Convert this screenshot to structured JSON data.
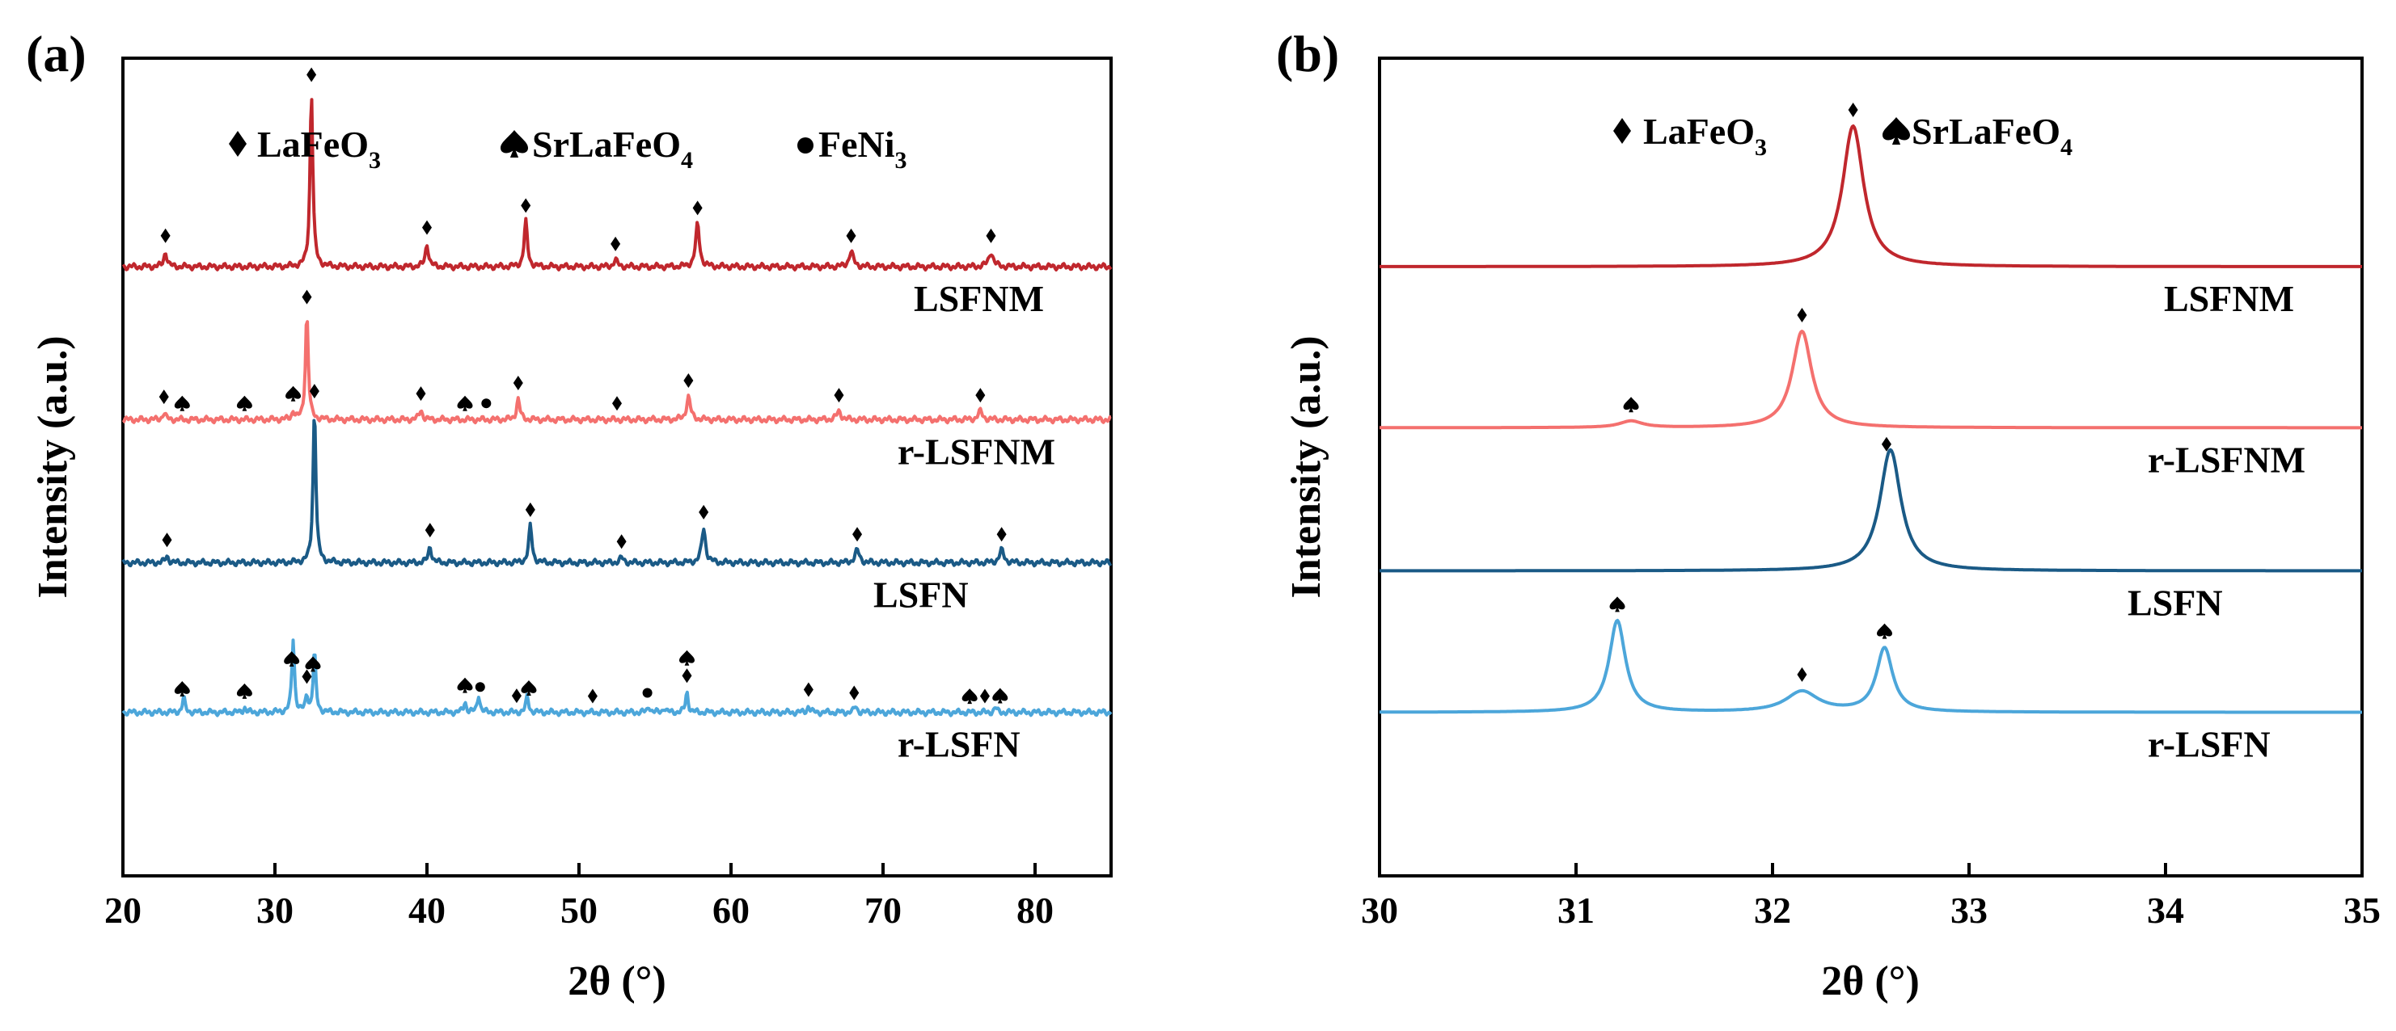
{
  "figure": {
    "panels": [
      {
        "label": "(a)",
        "ylabel": "Intensity (a.u.)",
        "xlabel": "2θ (°)",
        "legend": [
          {
            "marker": "diamond",
            "text": "LaFeO",
            "sub": "3"
          },
          {
            "marker": "spade",
            "text": "SrLaFeO",
            "sub": "4"
          },
          {
            "marker": "circle",
            "text": "FeNi",
            "sub": "3"
          }
        ]
      },
      {
        "label": "(b)",
        "ylabel": "Intensity (a.u.)",
        "xlabel": "2θ (°)",
        "legend": [
          {
            "marker": "diamond",
            "text": "LaFeO",
            "sub": "3"
          },
          {
            "marker": "spade",
            "text": "SrLaFeO",
            "sub": "4"
          }
        ]
      }
    ]
  },
  "chart_data": [
    {
      "type": "line",
      "title": "(a)",
      "xlabel": "2θ (°)",
      "ylabel": "Intensity (a.u.)",
      "xlim": [
        20,
        85
      ],
      "ylim": [
        0,
        1
      ],
      "xticks": [
        20,
        30,
        40,
        50,
        60,
        70,
        80
      ],
      "xtick_labels": [
        "20",
        "30",
        "40",
        "50",
        "60",
        "70",
        "80"
      ],
      "series": [
        {
          "name": "LSFNM",
          "color": "#c0272d",
          "baseline": 0.745,
          "noise": 0.004,
          "peaks": [
            {
              "x": 22.8,
              "h": 0.018,
              "w": 0.25
            },
            {
              "x": 32.4,
              "h": 0.215,
              "w": 0.22
            },
            {
              "x": 40.0,
              "h": 0.028,
              "w": 0.25
            },
            {
              "x": 46.5,
              "h": 0.055,
              "w": 0.25
            },
            {
              "x": 52.4,
              "h": 0.008,
              "w": 0.3
            },
            {
              "x": 57.8,
              "h": 0.052,
              "w": 0.3
            },
            {
              "x": 67.9,
              "h": 0.018,
              "w": 0.35
            },
            {
              "x": 77.1,
              "h": 0.018,
              "w": 0.35
            }
          ],
          "markers": [
            {
              "x": 22.8,
              "type": "diamond"
            },
            {
              "x": 32.4,
              "type": "diamond"
            },
            {
              "x": 40.0,
              "type": "diamond"
            },
            {
              "x": 46.5,
              "type": "diamond"
            },
            {
              "x": 52.4,
              "type": "diamond"
            },
            {
              "x": 57.8,
              "type": "diamond"
            },
            {
              "x": 67.9,
              "type": "diamond"
            },
            {
              "x": 77.1,
              "type": "diamond"
            }
          ]
        },
        {
          "name": "r-LSFNM",
          "color": "#f4706e",
          "baseline": 0.558,
          "noise": 0.004,
          "peaks": [
            {
              "x": 22.7,
              "h": 0.008,
              "w": 0.25
            },
            {
              "x": 31.2,
              "h": 0.01,
              "w": 0.2
            },
            {
              "x": 32.1,
              "h": 0.13,
              "w": 0.22
            },
            {
              "x": 39.6,
              "h": 0.012,
              "w": 0.25
            },
            {
              "x": 46.0,
              "h": 0.025,
              "w": 0.25
            },
            {
              "x": 57.2,
              "h": 0.028,
              "w": 0.3
            },
            {
              "x": 67.1,
              "h": 0.01,
              "w": 0.35
            },
            {
              "x": 76.4,
              "h": 0.01,
              "w": 0.35
            }
          ],
          "markers": [
            {
              "x": 22.7,
              "type": "diamond"
            },
            {
              "x": 23.9,
              "type": "spade"
            },
            {
              "x": 28.0,
              "type": "spade"
            },
            {
              "x": 31.2,
              "type": "spade"
            },
            {
              "x": 32.1,
              "type": "diamond"
            },
            {
              "x": 39.6,
              "type": "diamond"
            },
            {
              "x": 42.5,
              "type": "spade"
            },
            {
              "x": 43.9,
              "type": "circle"
            },
            {
              "x": 46.0,
              "type": "diamond"
            },
            {
              "x": 52.5,
              "type": "diamond"
            },
            {
              "x": 57.2,
              "type": "diamond"
            },
            {
              "x": 67.1,
              "type": "diamond"
            },
            {
              "x": 76.4,
              "type": "diamond"
            }
          ]
        },
        {
          "name": "LSFN",
          "color": "#1a5a86",
          "baseline": 0.383,
          "noise": 0.004,
          "peaks": [
            {
              "x": 22.9,
              "h": 0.008,
              "w": 0.25
            },
            {
              "x": 32.6,
              "h": 0.19,
              "w": 0.22
            },
            {
              "x": 40.2,
              "h": 0.02,
              "w": 0.25
            },
            {
              "x": 46.8,
              "h": 0.045,
              "w": 0.25
            },
            {
              "x": 52.8,
              "h": 0.006,
              "w": 0.3
            },
            {
              "x": 58.2,
              "h": 0.042,
              "w": 0.3
            },
            {
              "x": 68.3,
              "h": 0.015,
              "w": 0.35
            },
            {
              "x": 77.8,
              "h": 0.015,
              "w": 0.35
            }
          ],
          "markers": [
            {
              "x": 22.9,
              "type": "diamond"
            },
            {
              "x": 32.6,
              "type": "diamond"
            },
            {
              "x": 40.2,
              "type": "diamond"
            },
            {
              "x": 46.8,
              "type": "diamond"
            },
            {
              "x": 52.8,
              "type": "diamond"
            },
            {
              "x": 58.2,
              "type": "diamond"
            },
            {
              "x": 68.3,
              "type": "diamond"
            },
            {
              "x": 77.8,
              "type": "diamond"
            }
          ]
        },
        {
          "name": "r-LSFN",
          "color": "#4ca6da",
          "baseline": 0.2,
          "noise": 0.004,
          "peaks": [
            {
              "x": 24.0,
              "h": 0.018,
              "w": 0.2
            },
            {
              "x": 28.0,
              "h": 0.006,
              "w": 0.2
            },
            {
              "x": 31.2,
              "h": 0.09,
              "w": 0.2
            },
            {
              "x": 32.1,
              "h": 0.02,
              "w": 0.2
            },
            {
              "x": 32.6,
              "h": 0.075,
              "w": 0.2
            },
            {
              "x": 42.5,
              "h": 0.013,
              "w": 0.2
            },
            {
              "x": 43.4,
              "h": 0.022,
              "w": 0.2
            },
            {
              "x": 46.6,
              "h": 0.02,
              "w": 0.2
            },
            {
              "x": 54.6,
              "h": 0.008,
              "w": 0.2
            },
            {
              "x": 55.6,
              "h": 0.006,
              "w": 0.2
            },
            {
              "x": 57.1,
              "h": 0.025,
              "w": 0.2
            },
            {
              "x": 65.1,
              "h": 0.008,
              "w": 0.2
            },
            {
              "x": 68.2,
              "h": 0.008,
              "w": 0.2
            },
            {
              "x": 77.4,
              "h": 0.006,
              "w": 0.2
            }
          ],
          "markers": [
            {
              "x": 23.9,
              "type": "spade"
            },
            {
              "x": 28.0,
              "type": "spade"
            },
            {
              "x": 31.1,
              "type": "spade"
            },
            {
              "x": 32.1,
              "type": "diamond"
            },
            {
              "x": 32.5,
              "type": "spade"
            },
            {
              "x": 42.5,
              "type": "spade"
            },
            {
              "x": 43.5,
              "type": "circle"
            },
            {
              "x": 45.9,
              "type": "diamond"
            },
            {
              "x": 46.7,
              "type": "spade"
            },
            {
              "x": 50.9,
              "type": "diamond"
            },
            {
              "x": 54.5,
              "type": "circle"
            },
            {
              "x": 57.1,
              "type": "diamond"
            },
            {
              "x": 57.1,
              "type": "spade"
            },
            {
              "x": 65.1,
              "type": "diamond"
            },
            {
              "x": 68.1,
              "type": "diamond"
            },
            {
              "x": 75.7,
              "type": "spade"
            },
            {
              "x": 76.7,
              "type": "diamond"
            },
            {
              "x": 77.7,
              "type": "spade"
            }
          ]
        }
      ]
    },
    {
      "type": "line",
      "title": "(b)",
      "xlabel": "2θ (°)",
      "ylabel": "Intensity (a.u.)",
      "xlim": [
        30,
        35
      ],
      "ylim": [
        0,
        1
      ],
      "xticks": [
        30,
        31,
        32,
        33,
        34,
        35
      ],
      "xtick_labels": [
        "30",
        "31",
        "32",
        "33",
        "34",
        "35"
      ],
      "series": [
        {
          "name": "LSFNM",
          "color": "#c0272d",
          "baseline": 0.745,
          "noise": 0.0,
          "peaks": [
            {
              "x": 32.41,
              "h": 0.172,
              "w": 0.13
            }
          ],
          "markers": [
            {
              "x": 32.41,
              "type": "diamond"
            }
          ]
        },
        {
          "name": "r-LSFNM",
          "color": "#f4706e",
          "baseline": 0.548,
          "noise": 0.0,
          "peaks": [
            {
              "x": 31.28,
              "h": 0.008,
              "w": 0.14
            },
            {
              "x": 32.15,
              "h": 0.118,
              "w": 0.12
            }
          ],
          "markers": [
            {
              "x": 31.28,
              "type": "spade"
            },
            {
              "x": 32.15,
              "type": "diamond"
            }
          ]
        },
        {
          "name": "LSFN",
          "color": "#1a5a86",
          "baseline": 0.373,
          "noise": 0.0,
          "peaks": [
            {
              "x": 32.6,
              "h": 0.148,
              "w": 0.13
            }
          ],
          "markers": [
            {
              "x": 32.58,
              "type": "diamond"
            }
          ]
        },
        {
          "name": "r-LSFN",
          "color": "#4ca6da",
          "baseline": 0.2,
          "noise": 0.0,
          "peaks": [
            {
              "x": 31.21,
              "h": 0.112,
              "w": 0.1
            },
            {
              "x": 32.15,
              "h": 0.025,
              "w": 0.2
            },
            {
              "x": 32.57,
              "h": 0.078,
              "w": 0.1
            }
          ],
          "markers": [
            {
              "x": 31.21,
              "type": "spade"
            },
            {
              "x": 32.15,
              "type": "diamond"
            },
            {
              "x": 32.57,
              "type": "spade"
            }
          ]
        }
      ]
    }
  ]
}
